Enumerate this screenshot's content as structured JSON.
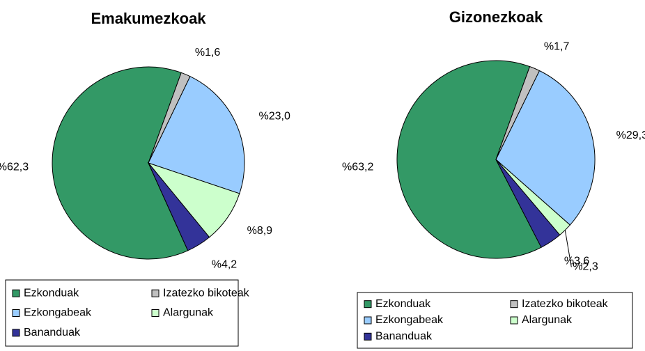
{
  "chart_data": [
    {
      "type": "pie",
      "title": "Emakumezkoak",
      "categories": [
        "Ezkonduak",
        "Izatezko bikoteak",
        "Ezkongabeak",
        "Alargunak",
        "Bananduak"
      ],
      "values": [
        62.3,
        1.6,
        23.0,
        8.9,
        4.2
      ],
      "value_labels": [
        "%62,3",
        "%1,6",
        "%23,0",
        "%8,9",
        "%4,2"
      ],
      "colors": [
        "#339966",
        "#c0c0c0",
        "#99ccff",
        "#ccffcc",
        "#333399"
      ]
    },
    {
      "type": "pie",
      "title": "Gizonezkoak",
      "categories": [
        "Ezkonduak",
        "Izatezko bikoteak",
        "Ezkongabeak",
        "Alargunak",
        "Bananduak"
      ],
      "values": [
        63.2,
        1.7,
        29.3,
        2.3,
        3.6
      ],
      "value_labels": [
        "%63,2",
        "%1,7",
        "%29,3",
        "%2,3",
        "%3,6"
      ],
      "colors": [
        "#339966",
        "#c0c0c0",
        "#99ccff",
        "#ccffcc",
        "#333399"
      ]
    }
  ]
}
